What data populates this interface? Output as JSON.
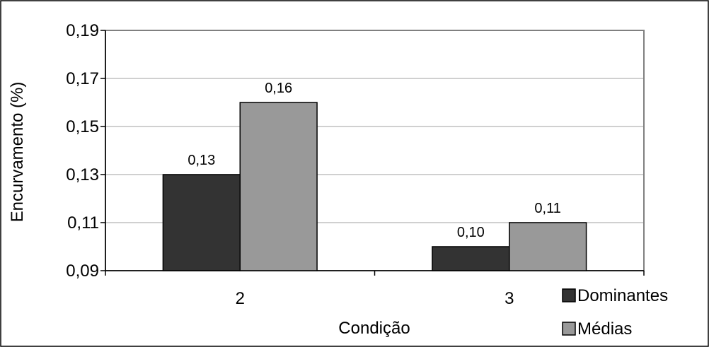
{
  "colors": {
    "dominantes": "#333333",
    "medias": "#999999",
    "gridline": "#c0c0c0",
    "plot_border": "#808080",
    "frame": "#000000"
  },
  "chart_data": {
    "type": "bar",
    "categories": [
      "2",
      "3"
    ],
    "series": [
      {
        "name": "Dominantes",
        "values": [
          0.13,
          0.1
        ],
        "labels": [
          "0,13",
          "0,10"
        ]
      },
      {
        "name": "Médias",
        "values": [
          0.16,
          0.11
        ],
        "labels": [
          "0,16",
          "0,11"
        ]
      }
    ],
    "xlabel": "Condição",
    "ylabel": "Encurvamento (%)",
    "ylim": [
      0.09,
      0.19
    ],
    "yticks": [
      0.09,
      0.11,
      0.13,
      0.15,
      0.17,
      0.19
    ],
    "ytick_labels": [
      "0,09",
      "0,11",
      "0,13",
      "0,15",
      "0,17",
      "0,19"
    ],
    "grid": true,
    "legend_position": "bottom-right"
  }
}
